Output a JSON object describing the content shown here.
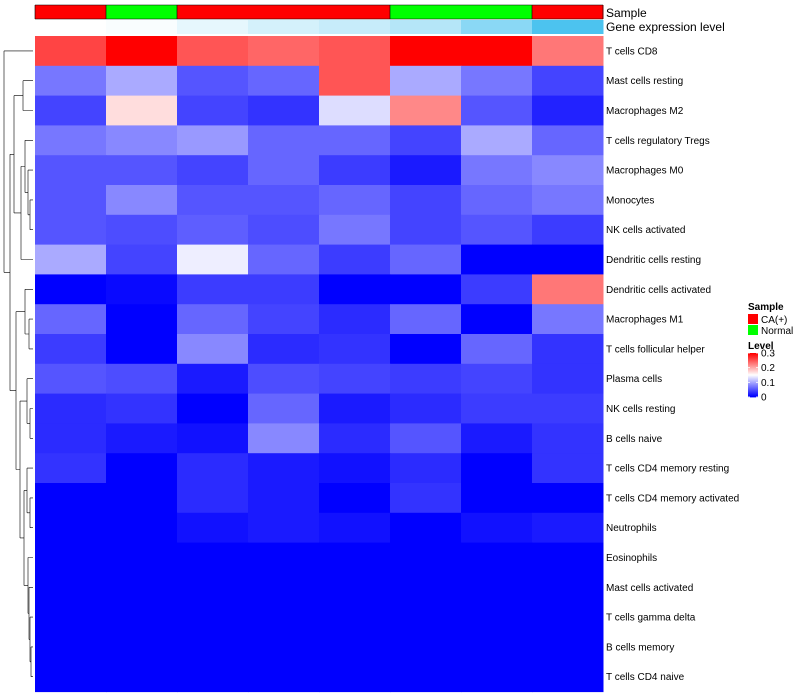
{
  "chart_data": {
    "type": "heatmap",
    "title": "",
    "annotations": {
      "top_label": "Sample",
      "second_label": "Gene expression level",
      "sample_groups": [
        "CA(+)",
        "Normal",
        "CA(+)",
        "CA(+)",
        "CA(+)",
        "Normal",
        "Normal",
        "CA(+)"
      ],
      "expression_levels": [
        0.01,
        0.02,
        0.05,
        0.08,
        0.1,
        0.13,
        0.2,
        0.3
      ]
    },
    "rows": [
      "T cells CD8",
      "Mast cells resting",
      "Macrophages M2",
      "T cells regulatory  Tregs",
      "Macrophages M0",
      "Monocytes",
      "NK cells activated",
      "Dendritic cells resting",
      "Dendritic cells activated",
      "Macrophages M1",
      "T cells follicular helper",
      "Plasma cells",
      "NK cells resting",
      "B cells naive",
      "T cells CD4 memory resting",
      "T cells CD4 memory activated",
      "Neutrophils",
      "Eosinophils",
      "Mast cells activated",
      "T cells gamma delta",
      "B cells memory",
      "T cells CD4 naive"
    ],
    "values": [
      [
        0.26,
        0.3,
        0.25,
        0.24,
        0.25,
        0.3,
        0.3,
        0.23
      ],
      [
        0.07,
        0.1,
        0.05,
        0.06,
        0.25,
        0.1,
        0.07,
        0.04
      ],
      [
        0.04,
        0.17,
        0.04,
        0.03,
        0.13,
        0.22,
        0.05,
        0.02
      ],
      [
        0.07,
        0.08,
        0.09,
        0.06,
        0.06,
        0.04,
        0.1,
        0.06
      ],
      [
        0.05,
        0.05,
        0.04,
        0.06,
        0.035,
        0.015,
        0.07,
        0.08
      ],
      [
        0.05,
        0.08,
        0.05,
        0.05,
        0.06,
        0.04,
        0.06,
        0.07
      ],
      [
        0.05,
        0.045,
        0.055,
        0.045,
        0.07,
        0.04,
        0.05,
        0.035
      ],
      [
        0.1,
        0.04,
        0.14,
        0.06,
        0.035,
        0.06,
        0.0,
        0.0
      ],
      [
        0.0,
        0.005,
        0.035,
        0.035,
        0.0,
        0.0,
        0.035,
        0.23
      ],
      [
        0.06,
        0.0,
        0.06,
        0.04,
        0.025,
        0.06,
        0.0,
        0.07
      ],
      [
        0.035,
        0.0,
        0.08,
        0.025,
        0.03,
        0.0,
        0.06,
        0.03
      ],
      [
        0.05,
        0.045,
        0.015,
        0.045,
        0.04,
        0.035,
        0.04,
        0.03
      ],
      [
        0.025,
        0.03,
        0.0,
        0.06,
        0.015,
        0.025,
        0.035,
        0.035
      ],
      [
        0.025,
        0.015,
        0.01,
        0.08,
        0.025,
        0.05,
        0.015,
        0.03
      ],
      [
        0.03,
        0.0,
        0.025,
        0.015,
        0.01,
        0.025,
        0.0,
        0.03
      ],
      [
        0.0,
        0.0,
        0.025,
        0.015,
        0.0,
        0.03,
        0.0,
        0.0
      ],
      [
        0.0,
        0.0,
        0.01,
        0.015,
        0.01,
        0.0,
        0.01,
        0.015
      ],
      [
        0.0,
        0.0,
        0.0,
        0.0,
        0.0,
        0.0,
        0.0,
        0.0
      ],
      [
        0.0,
        0.0,
        0.0,
        0.0,
        0.0,
        0.0,
        0.0,
        0.0
      ],
      [
        0.0,
        0.0,
        0.0,
        0.0,
        0.0,
        0.0,
        0.0,
        0.0
      ],
      [
        0.0,
        0.0,
        0.0,
        0.0,
        0.0,
        0.0,
        0.0,
        0.0
      ],
      [
        0.0,
        0.0,
        0.0,
        0.0,
        0.0,
        0.0,
        0.0,
        0.0
      ]
    ],
    "color_scale": {
      "min": 0,
      "mid": 0.15,
      "max": 0.3,
      "colors": [
        "#0000ff",
        "#ffffff",
        "#ff0000"
      ]
    },
    "legend": {
      "sample_title": "Sample",
      "sample_entries": [
        {
          "label": "CA(+)",
          "color": "#ff0000"
        },
        {
          "label": "Normal",
          "color": "#00ff00"
        }
      ],
      "level_title": "Level",
      "level_ticks": [
        {
          "value": 0.3,
          "label": "0.3"
        },
        {
          "value": 0.2,
          "label": "0.2"
        },
        {
          "value": 0.1,
          "label": "0.1"
        },
        {
          "value": 0,
          "label": "0"
        }
      ]
    },
    "level_colors": {
      "low": "#ffffff",
      "high": "#4cc3ef"
    },
    "dendrogram": "row clustering tree on left"
  }
}
